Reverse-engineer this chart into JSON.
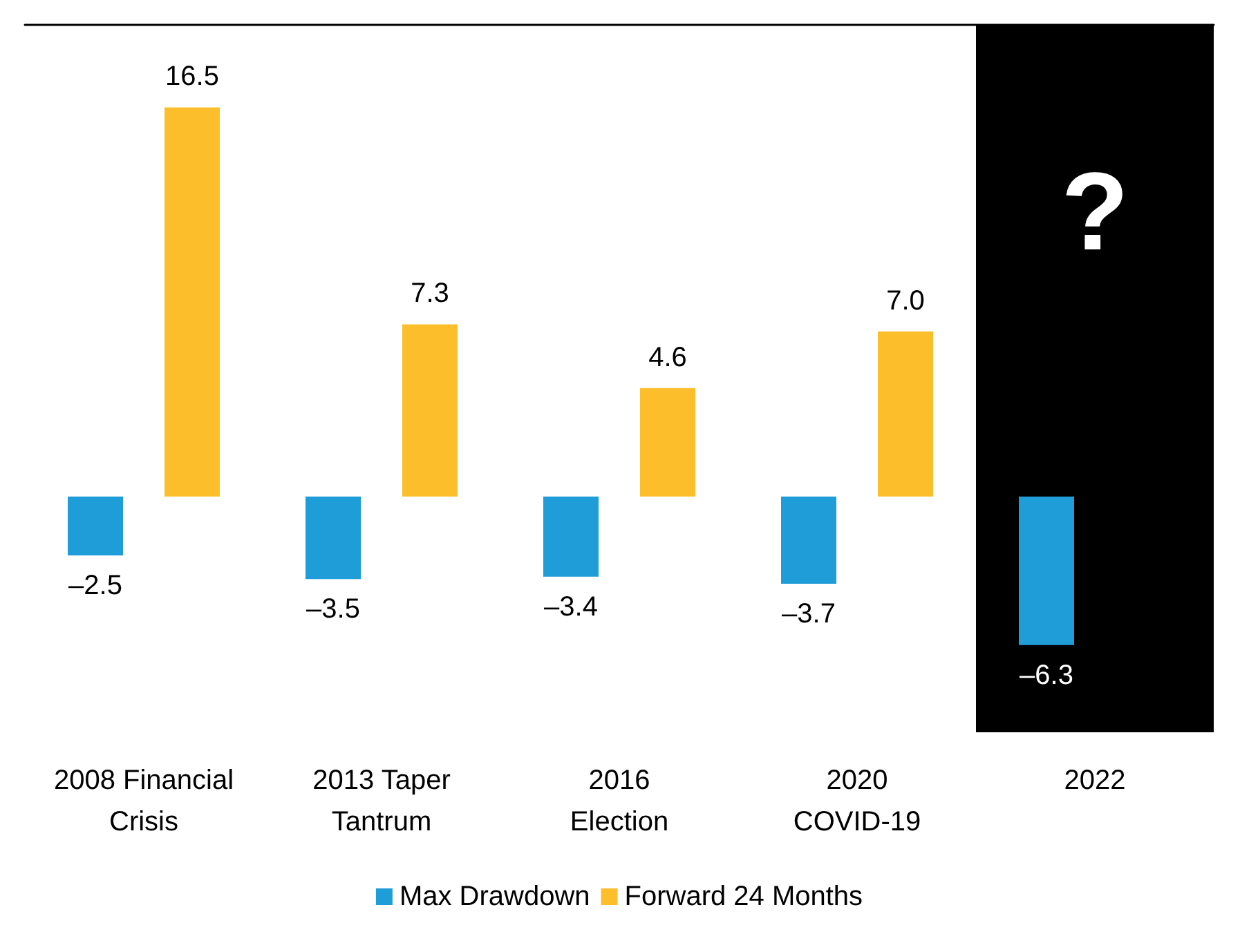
{
  "chart_data": {
    "type": "bar",
    "categories": [
      "2008 Financial\nCrisis",
      "2013 Taper\nTantrum",
      "2016\nElection",
      "2020\nCOVID-19",
      "2022"
    ],
    "series": [
      {
        "name": "Max Drawdown",
        "color": "#1f9dd9",
        "values": [
          -2.5,
          -3.5,
          -3.4,
          -3.7,
          -6.3
        ],
        "value_labels": [
          "–2.5",
          "–3.5",
          "–3.4",
          "–3.7",
          "–6.3"
        ]
      },
      {
        "name": "Forward 24 Months",
        "color": "#fcbf2b",
        "values": [
          16.5,
          7.3,
          4.6,
          7.0,
          null
        ],
        "value_labels": [
          "16.5",
          "7.3",
          "4.6",
          "7.0",
          null
        ]
      }
    ],
    "bands": [
      {
        "axis": "x",
        "from": "2022",
        "to": "2022",
        "label": "?",
        "color": "#000000"
      }
    ],
    "legend": "bottom",
    "grid": false
  }
}
